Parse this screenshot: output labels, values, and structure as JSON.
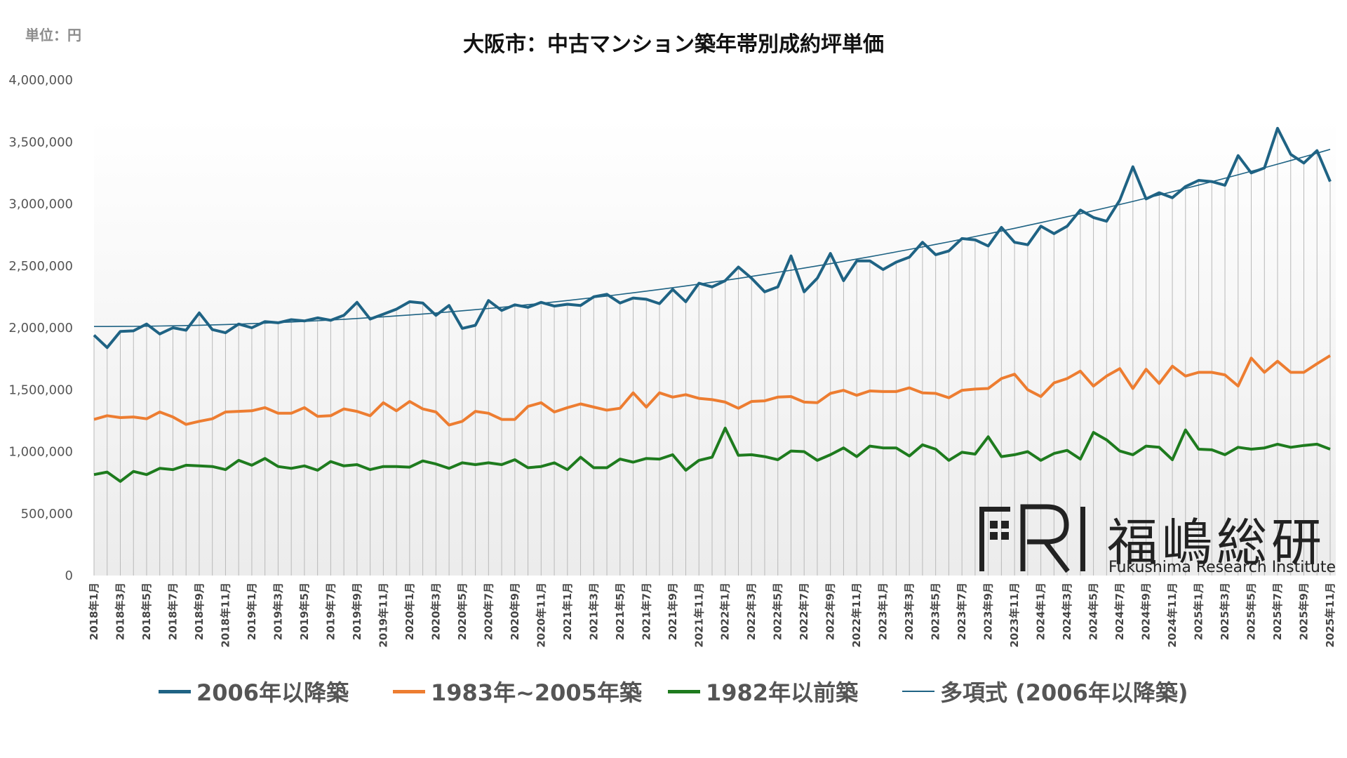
{
  "unit_label": "単位：円",
  "logo": {
    "jp": "福嶋総研",
    "en": "Fukushima Research Institute",
    "mark": "FRI"
  },
  "legend": [
    {
      "label": "2006年以降築",
      "color": "#1f6384"
    },
    {
      "label": "1983年~2005年築",
      "color": "#ed7d31"
    },
    {
      "label": "1982年以前築",
      "color": "#1e7b1e"
    },
    {
      "label": "多項式 (2006年以降築)",
      "color": "#1f6384"
    }
  ],
  "chart_data": {
    "type": "line",
    "title": "大阪市：中古マンション築年帯別成約坪単価",
    "xlabel": "",
    "ylabel": "",
    "ylim": [
      0,
      4000000
    ],
    "yticks": [
      "0",
      "500,000",
      "1,000,000",
      "1,500,000",
      "2,000,000",
      "2,500,000",
      "3,000,000",
      "3,500,000",
      "4,000,000"
    ],
    "grid": "vertical drop lines",
    "legend_position": "bottom",
    "x": [
      "2018年1月",
      "2018年2月",
      "2018年3月",
      "2018年4月",
      "2018年5月",
      "2018年6月",
      "2018年7月",
      "2018年8月",
      "2018年9月",
      "2018年10月",
      "2018年11月",
      "2018年12月",
      "2019年1月",
      "2019年2月",
      "2019年3月",
      "2019年4月",
      "2019年5月",
      "2019年6月",
      "2019年7月",
      "2019年8月",
      "2019年9月",
      "2019年10月",
      "2019年11月",
      "2019年12月",
      "2020年1月",
      "2020年2月",
      "2020年3月",
      "2020年4月",
      "2020年5月",
      "2020年6月",
      "2020年7月",
      "2020年8月",
      "2020年9月",
      "2020年10月",
      "2020年11月",
      "2020年12月",
      "2021年1月",
      "2021年2月",
      "2021年3月",
      "2021年4月",
      "2021年5月",
      "2021年6月",
      "2021年7月",
      "2021年8月",
      "2021年9月",
      "2021年10月",
      "2021年11月",
      "2021年12月",
      "2022年1月",
      "2022年2月",
      "2022年3月",
      "2022年4月",
      "2022年5月",
      "2022年6月",
      "2022年7月",
      "2022年8月",
      "2022年9月",
      "2022年10月",
      "2022年11月",
      "2022年12月",
      "2023年1月",
      "2023年2月",
      "2023年3月",
      "2023年4月",
      "2023年5月",
      "2023年6月",
      "2023年7月",
      "2023年8月",
      "2023年9月",
      "2023年10月",
      "2023年11月",
      "2023年12月",
      "2024年1月",
      "2024年2月",
      "2024年3月",
      "2024年4月",
      "2024年5月",
      "2024年6月",
      "2024年7月",
      "2024年8月",
      "2024年9月",
      "2024年10月",
      "2024年11月",
      "2024年12月",
      "2025年1月",
      "2025年2月",
      "2025年3月",
      "2025年4月",
      "2025年5月",
      "2025年6月",
      "2025年7月",
      "2025年8月",
      "2025年9月",
      "2025年10月",
      "2025年11月"
    ],
    "x_tick_labels_shown_every": 2,
    "series": [
      {
        "name": "2006年以降築",
        "color": "#1f6384",
        "values": [
          1940000,
          1840000,
          1970000,
          1975000,
          2030000,
          1950000,
          2000000,
          1980000,
          2120000,
          1985000,
          1960000,
          2030000,
          2000000,
          2050000,
          2040000,
          2065000,
          2055000,
          2080000,
          2060000,
          2100000,
          2205000,
          2070000,
          2110000,
          2150000,
          2210000,
          2200000,
          2100000,
          2180000,
          1995000,
          2020000,
          2220000,
          2140000,
          2185000,
          2165000,
          2205000,
          2175000,
          2190000,
          2180000,
          2250000,
          2270000,
          2200000,
          2240000,
          2230000,
          2195000,
          2310000,
          2210000,
          2360000,
          2330000,
          2380000,
          2490000,
          2400000,
          2290000,
          2330000,
          2580000,
          2290000,
          2400000,
          2600000,
          2380000,
          2540000,
          2540000,
          2470000,
          2530000,
          2570000,
          2690000,
          2590000,
          2620000,
          2720000,
          2710000,
          2660000,
          2810000,
          2690000,
          2670000,
          2820000,
          2760000,
          2820000,
          2950000,
          2890000,
          2860000,
          3030000,
          3300000,
          3040000,
          3090000,
          3050000,
          3140000,
          3190000,
          3180000,
          3150000,
          3390000,
          3250000,
          3290000,
          3610000,
          3400000,
          3330000,
          3430000,
          3180000
        ]
      },
      {
        "name": "1983年~2005年築",
        "color": "#ed7d31",
        "values": [
          1260000,
          1290000,
          1275000,
          1280000,
          1265000,
          1320000,
          1280000,
          1220000,
          1245000,
          1265000,
          1320000,
          1325000,
          1330000,
          1355000,
          1310000,
          1310000,
          1355000,
          1285000,
          1290000,
          1345000,
          1325000,
          1290000,
          1395000,
          1330000,
          1405000,
          1345000,
          1320000,
          1215000,
          1245000,
          1325000,
          1310000,
          1260000,
          1260000,
          1365000,
          1395000,
          1320000,
          1355000,
          1385000,
          1360000,
          1335000,
          1350000,
          1475000,
          1360000,
          1475000,
          1440000,
          1460000,
          1430000,
          1420000,
          1400000,
          1350000,
          1405000,
          1410000,
          1440000,
          1445000,
          1400000,
          1395000,
          1470000,
          1495000,
          1455000,
          1490000,
          1485000,
          1485000,
          1515000,
          1475000,
          1470000,
          1435000,
          1495000,
          1505000,
          1510000,
          1590000,
          1625000,
          1500000,
          1445000,
          1555000,
          1590000,
          1650000,
          1530000,
          1610000,
          1670000,
          1510000,
          1665000,
          1550000,
          1690000,
          1610000,
          1640000,
          1640000,
          1620000,
          1530000,
          1755000,
          1640000,
          1730000,
          1640000,
          1640000,
          1710000,
          1775000
        ]
      },
      {
        "name": "1982年以前築",
        "color": "#1e7b1e",
        "values": [
          815000,
          835000,
          760000,
          840000,
          815000,
          865000,
          855000,
          890000,
          885000,
          880000,
          855000,
          930000,
          890000,
          945000,
          880000,
          865000,
          885000,
          850000,
          920000,
          885000,
          895000,
          855000,
          880000,
          880000,
          875000,
          925000,
          900000,
          865000,
          910000,
          895000,
          910000,
          895000,
          935000,
          870000,
          880000,
          910000,
          855000,
          955000,
          870000,
          870000,
          940000,
          915000,
          945000,
          940000,
          975000,
          850000,
          930000,
          955000,
          1190000,
          970000,
          975000,
          960000,
          935000,
          1005000,
          1000000,
          930000,
          975000,
          1030000,
          960000,
          1045000,
          1030000,
          1030000,
          965000,
          1055000,
          1020000,
          930000,
          995000,
          980000,
          1120000,
          960000,
          975000,
          1000000,
          930000,
          985000,
          1010000,
          940000,
          1155000,
          1095000,
          1005000,
          975000,
          1045000,
          1035000,
          935000,
          1175000,
          1020000,
          1015000,
          975000,
          1035000,
          1020000,
          1030000,
          1060000,
          1035000,
          1050000,
          1060000,
          1020000
        ]
      },
      {
        "name": "多項式 (2006年以降築)",
        "color": "#1f6384",
        "kind": "trendline",
        "trend_start": 2010000,
        "trend_end": 3440000
      }
    ]
  }
}
